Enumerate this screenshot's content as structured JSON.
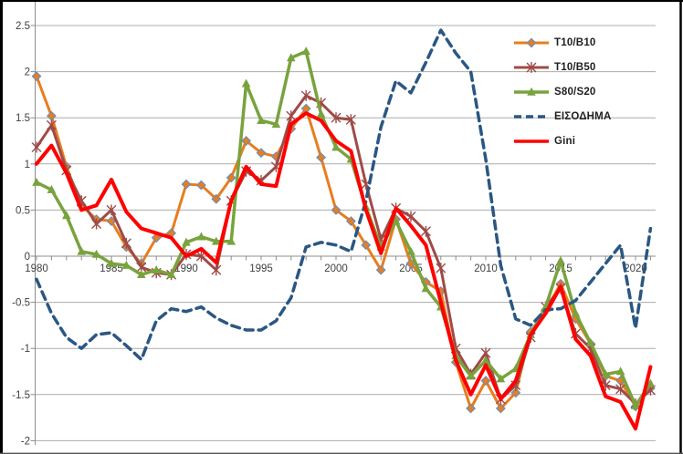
{
  "chart_data": {
    "type": "line",
    "title": "",
    "xlabel": "",
    "ylabel": "",
    "grid": true,
    "legend_position": "top-right",
    "ylim": [
      -2,
      2.5
    ],
    "xlim": [
      1980,
      2021.5
    ],
    "y_ticks": [
      2.5,
      2,
      1.5,
      1,
      0.5,
      0,
      -0.5,
      -1,
      -1.5,
      -2
    ],
    "y_tick_labels": [
      "2.5",
      "2",
      "1.5",
      "1",
      "0.5",
      "0",
      "-0.5",
      "-1",
      "-1.5",
      "-2"
    ],
    "x_tick_label_years": [
      1980,
      1985,
      1990,
      1995,
      2000,
      2005,
      2010,
      2015,
      2020
    ],
    "x": [
      1980,
      1981,
      1982,
      1983,
      1984,
      1985,
      1986,
      1987,
      1988,
      1989,
      1990,
      1991,
      1992,
      1993,
      1994,
      1995,
      1996,
      1997,
      1998,
      1999,
      2000,
      2001,
      2002,
      2003,
      2004,
      2005,
      2006,
      2007,
      2008,
      2009,
      2010,
      2011,
      2012,
      2013,
      2014,
      2015,
      2016,
      2017,
      2018,
      2019,
      2020,
      2021
    ],
    "series": [
      {
        "name": "T10/B10",
        "color": "#E87D1E",
        "marker": "diamond",
        "marker_outline": "#6E8EB5",
        "line_style": "solid",
        "width": 3,
        "values": [
          1.95,
          1.52,
          0.97,
          0.55,
          0.4,
          0.38,
          0.1,
          -0.08,
          0.2,
          0.25,
          0.78,
          0.77,
          0.62,
          0.85,
          1.25,
          1.12,
          1.08,
          1.38,
          1.6,
          1.07,
          0.5,
          0.38,
          0.12,
          -0.15,
          0.4,
          -0.08,
          -0.28,
          -0.38,
          -1.15,
          -1.65,
          -1.35,
          -1.65,
          -1.48,
          -0.82,
          -0.58,
          -0.3,
          -0.68,
          -0.95,
          -1.3,
          -1.35,
          -1.63,
          -1.43
        ]
      },
      {
        "name": "T10/B50",
        "color": "#9E4B47",
        "marker": "star",
        "marker_outline": "#9E4B47",
        "line_style": "solid",
        "width": 3,
        "values": [
          1.18,
          1.42,
          0.93,
          0.6,
          0.35,
          0.5,
          0.14,
          -0.12,
          -0.18,
          -0.2,
          0.02,
          0.0,
          -0.15,
          0.6,
          0.92,
          0.82,
          0.97,
          1.52,
          1.74,
          1.66,
          1.5,
          1.48,
          0.78,
          0.18,
          0.52,
          0.43,
          0.27,
          -0.13,
          -1.0,
          -1.28,
          -1.05,
          -1.55,
          -1.4,
          -0.88,
          -0.55,
          -0.35,
          -0.84,
          -1.0,
          -1.4,
          -1.44,
          -1.6,
          -1.45
        ]
      },
      {
        "name": "S80/S20",
        "color": "#78A33D",
        "marker": "triangle",
        "marker_outline": "#78A33D",
        "line_style": "solid",
        "width": 3.5,
        "values": [
          0.8,
          0.72,
          0.44,
          0.05,
          0.02,
          -0.08,
          -0.1,
          -0.2,
          -0.15,
          -0.2,
          0.15,
          0.21,
          0.16,
          0.16,
          1.87,
          1.47,
          1.43,
          2.15,
          2.22,
          1.54,
          1.18,
          1.05,
          0.53,
          0.1,
          0.38,
          0.05,
          -0.35,
          -0.55,
          -1.08,
          -1.3,
          -1.13,
          -1.33,
          -1.22,
          -0.85,
          -0.55,
          -0.05,
          -0.62,
          -0.94,
          -1.28,
          -1.25,
          -1.62,
          -1.38
        ]
      },
      {
        "name": "ΕΙΣΟΔΗΜΑ",
        "color": "#2A5783",
        "marker": "none",
        "marker_outline": "#2A5783",
        "line_style": "dashed",
        "width": 3.5,
        "values": [
          -0.25,
          -0.62,
          -0.88,
          -1.0,
          -0.85,
          -0.83,
          -0.97,
          -1.12,
          -0.7,
          -0.57,
          -0.6,
          -0.55,
          -0.67,
          -0.75,
          -0.8,
          -0.8,
          -0.7,
          -0.45,
          0.1,
          0.15,
          0.12,
          0.05,
          0.6,
          1.4,
          1.9,
          1.77,
          2.1,
          2.45,
          2.2,
          2.0,
          1.05,
          -0.1,
          -0.68,
          -0.75,
          -0.58,
          -0.57,
          -0.48,
          -0.28,
          -0.08,
          0.12,
          -0.78,
          0.3
        ]
      },
      {
        "name": "Gini",
        "color": "#FF0000",
        "marker": "none",
        "marker_outline": "#FF0000",
        "line_style": "solid",
        "width": 4,
        "values": [
          1.0,
          1.2,
          0.9,
          0.5,
          0.55,
          0.83,
          0.48,
          0.3,
          0.25,
          0.2,
          0.0,
          0.08,
          -0.07,
          0.6,
          0.97,
          0.78,
          0.76,
          1.43,
          1.55,
          1.47,
          1.25,
          1.14,
          0.5,
          0.03,
          0.52,
          0.33,
          0.12,
          -0.5,
          -1.13,
          -1.5,
          -1.18,
          -1.55,
          -1.35,
          -0.85,
          -0.62,
          -0.33,
          -0.9,
          -1.08,
          -1.52,
          -1.58,
          -1.87,
          -1.2
        ]
      }
    ]
  },
  "colors": {
    "background": "#FFFFFF",
    "grid": "#ACACAC",
    "axis": "#8C8C8C",
    "tick_text": "#3F3F3F",
    "legend_text": "#1F1F1F",
    "frame_border": "#000000"
  }
}
